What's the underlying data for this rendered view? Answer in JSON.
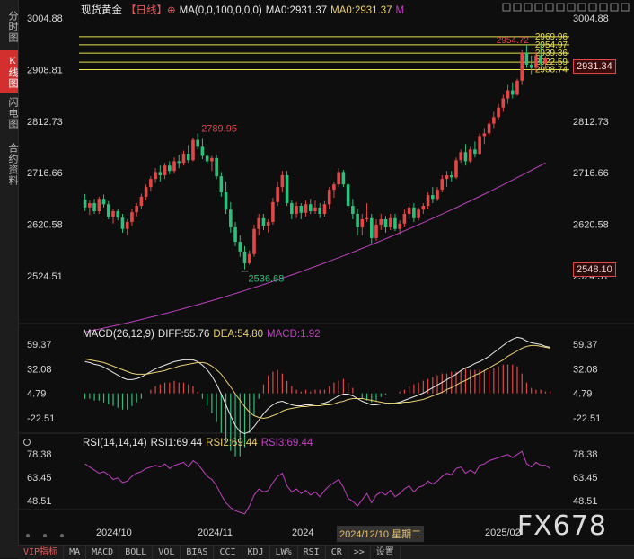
{
  "left_rail": {
    "tabs": [
      {
        "label": "分时图",
        "active": false
      },
      {
        "label": "K线图",
        "active": true
      },
      {
        "label": "闪电图",
        "active": false
      },
      {
        "label": "合约资料",
        "active": false
      }
    ]
  },
  "header": {
    "instrument": "现货黄金",
    "period": "【日线】",
    "plus_icon": "⊕",
    "ma_label": "MA(0,0,100,0,0,0)",
    "ma0_a": "MA0:2931.37",
    "ma0_b": "MA0:2931.37",
    "ma_tail": "M"
  },
  "toolbar_icons": [
    "checkbox-icon",
    "checkbox-icon",
    "checkbox-icon",
    "checkbox-icon",
    "checkbox-icon",
    "checkbox-icon",
    "checkbox-icon",
    "checkbox-icon",
    "checkbox-icon",
    "checkbox-icon",
    "checkbox-icon",
    "checkbox-icon"
  ],
  "macd_header": {
    "title": "MACD(26,12,9)",
    "diff": "DIFF:55.76",
    "dea": "DEA:54.80",
    "macd": "MACD:1.92"
  },
  "rsi_header": {
    "title": "RSI(14,14,14)",
    "rsi1": "RSI1:69.44",
    "rsi2": "RSI2:69.44",
    "rsi3": "RSI3:69.44"
  },
  "current_price_label": "2931.34",
  "low_price_label": "2548.10",
  "date_flag": "2024/12/10 星期二",
  "watermark": "FX678",
  "bottom_toolbar": [
    "VIP指标",
    "MA",
    "MACD",
    "BOLL",
    "VOL",
    "BIAS",
    "CCI",
    "KDJ",
    "LW%",
    "RSI",
    "CR",
    ">>",
    "设置"
  ],
  "colors": {
    "up": "#e04848",
    "down": "#2fbf7a",
    "ma": "#c040c0",
    "hline": "#e8e050",
    "diff": "#e8e8e8",
    "dea": "#e8d070",
    "rsi": "#c040c0",
    "axis": "#d8d8d8"
  },
  "chart_data": {
    "type": "candlestick",
    "price_axis": {
      "ticks": [
        3004.88,
        2908.81,
        2812.73,
        2716.66,
        2620.58,
        2524.51
      ],
      "ylim": [
        2500,
        3010
      ]
    },
    "x_tick_labels": [
      "2024/10",
      "2024/11",
      "2024",
      "1",
      "2025/02"
    ],
    "annotations": {
      "high": {
        "label": "2789.95",
        "value": 2789.95
      },
      "low": {
        "label": "2536.68",
        "value": 2536.68
      },
      "recent_high": {
        "label": "2954.72",
        "value": 2954.72
      }
    },
    "horizontal_levels": [
      {
        "label": "2969.96",
        "value": 2969.96
      },
      {
        "label": "2954.97",
        "value": 2954.97
      },
      {
        "label": "2939.36",
        "value": 2939.36
      },
      {
        "label": "2922.59",
        "value": 2922.59
      },
      {
        "label": "2908.74",
        "value": 2908.74
      }
    ],
    "candles": [
      [
        2667,
        2677,
        2645,
        2652
      ],
      [
        2652,
        2665,
        2638,
        2660
      ],
      [
        2660,
        2668,
        2640,
        2645
      ],
      [
        2645,
        2672,
        2640,
        2668
      ],
      [
        2668,
        2676,
        2652,
        2658
      ],
      [
        2658,
        2664,
        2630,
        2635
      ],
      [
        2635,
        2650,
        2622,
        2645
      ],
      [
        2645,
        2650,
        2628,
        2633
      ],
      [
        2633,
        2640,
        2605,
        2612
      ],
      [
        2612,
        2630,
        2600,
        2625
      ],
      [
        2625,
        2650,
        2618,
        2643
      ],
      [
        2643,
        2660,
        2635,
        2655
      ],
      [
        2655,
        2678,
        2650,
        2672
      ],
      [
        2672,
        2695,
        2665,
        2690
      ],
      [
        2690,
        2710,
        2682,
        2705
      ],
      [
        2705,
        2725,
        2698,
        2718
      ],
      [
        2718,
        2730,
        2700,
        2712
      ],
      [
        2712,
        2735,
        2705,
        2730
      ],
      [
        2730,
        2738,
        2714,
        2720
      ],
      [
        2720,
        2745,
        2715,
        2738
      ],
      [
        2738,
        2750,
        2725,
        2735
      ],
      [
        2735,
        2758,
        2730,
        2752
      ],
      [
        2752,
        2768,
        2735,
        2740
      ],
      [
        2740,
        2782,
        2738,
        2778
      ],
      [
        2778,
        2790,
        2760,
        2765
      ],
      [
        2765,
        2780,
        2742,
        2748
      ],
      [
        2748,
        2752,
        2732,
        2738
      ],
      [
        2738,
        2748,
        2720,
        2744
      ],
      [
        2744,
        2750,
        2705,
        2710
      ],
      [
        2710,
        2718,
        2672,
        2680
      ],
      [
        2680,
        2700,
        2640,
        2648
      ],
      [
        2648,
        2662,
        2605,
        2615
      ],
      [
        2615,
        2625,
        2580,
        2588
      ],
      [
        2588,
        2600,
        2560,
        2570
      ],
      [
        2570,
        2580,
        2537,
        2548
      ],
      [
        2548,
        2572,
        2545,
        2565
      ],
      [
        2565,
        2620,
        2560,
        2612
      ],
      [
        2612,
        2640,
        2600,
        2632
      ],
      [
        2632,
        2640,
        2610,
        2618
      ],
      [
        2618,
        2630,
        2605,
        2625
      ],
      [
        2625,
        2670,
        2620,
        2662
      ],
      [
        2662,
        2700,
        2655,
        2690
      ],
      [
        2690,
        2720,
        2680,
        2712
      ],
      [
        2712,
        2720,
        2655,
        2660
      ],
      [
        2660,
        2665,
        2630,
        2640
      ],
      [
        2640,
        2662,
        2632,
        2655
      ],
      [
        2655,
        2660,
        2630,
        2642
      ],
      [
        2642,
        2665,
        2635,
        2658
      ],
      [
        2658,
        2668,
        2640,
        2645
      ],
      [
        2645,
        2665,
        2640,
        2652
      ],
      [
        2652,
        2660,
        2632,
        2640
      ],
      [
        2640,
        2664,
        2635,
        2658
      ],
      [
        2658,
        2690,
        2650,
        2685
      ],
      [
        2685,
        2700,
        2670,
        2695
      ],
      [
        2695,
        2725,
        2690,
        2718
      ],
      [
        2718,
        2722,
        2690,
        2695
      ],
      [
        2695,
        2700,
        2650,
        2655
      ],
      [
        2655,
        2668,
        2630,
        2640
      ],
      [
        2640,
        2650,
        2600,
        2615
      ],
      [
        2615,
        2640,
        2600,
        2630
      ],
      [
        2630,
        2660,
        2625,
        2632
      ],
      [
        2632,
        2640,
        2585,
        2595
      ],
      [
        2595,
        2630,
        2590,
        2620
      ],
      [
        2620,
        2640,
        2610,
        2630
      ],
      [
        2630,
        2636,
        2605,
        2615
      ],
      [
        2615,
        2640,
        2610,
        2632
      ],
      [
        2632,
        2640,
        2608,
        2612
      ],
      [
        2612,
        2628,
        2602,
        2622
      ],
      [
        2622,
        2648,
        2615,
        2640
      ],
      [
        2640,
        2660,
        2630,
        2652
      ],
      [
        2652,
        2660,
        2625,
        2632
      ],
      [
        2632,
        2652,
        2628,
        2648
      ],
      [
        2648,
        2660,
        2640,
        2655
      ],
      [
        2655,
        2680,
        2650,
        2675
      ],
      [
        2675,
        2690,
        2660,
        2668
      ],
      [
        2668,
        2690,
        2664,
        2685
      ],
      [
        2685,
        2712,
        2680,
        2705
      ],
      [
        2705,
        2720,
        2690,
        2712
      ],
      [
        2712,
        2720,
        2700,
        2708
      ],
      [
        2708,
        2745,
        2705,
        2740
      ],
      [
        2740,
        2760,
        2735,
        2755
      ],
      [
        2755,
        2770,
        2730,
        2738
      ],
      [
        2738,
        2765,
        2735,
        2760
      ],
      [
        2760,
        2775,
        2745,
        2752
      ],
      [
        2752,
        2790,
        2750,
        2785
      ],
      [
        2785,
        2800,
        2770,
        2790
      ],
      [
        2790,
        2815,
        2785,
        2808
      ],
      [
        2808,
        2830,
        2800,
        2820
      ],
      [
        2820,
        2845,
        2815,
        2838
      ],
      [
        2838,
        2862,
        2830,
        2855
      ],
      [
        2855,
        2880,
        2845,
        2870
      ],
      [
        2870,
        2885,
        2855,
        2862
      ],
      [
        2862,
        2892,
        2860,
        2888
      ],
      [
        2888,
        2945,
        2880,
        2940
      ],
      [
        2940,
        2955,
        2912,
        2918
      ],
      [
        2918,
        2935,
        2900,
        2912
      ],
      [
        2912,
        2942,
        2905,
        2935
      ],
      [
        2935,
        2958,
        2915,
        2920
      ],
      [
        2920,
        2934,
        2908,
        2931
      ]
    ],
    "ma_line": {
      "name": "MA100",
      "start": 2420,
      "end": 2735
    },
    "macd": {
      "yticks": [
        59.37,
        32.08,
        4.79,
        -22.51
      ],
      "ylim": [
        -45,
        72
      ],
      "diff": [
        40,
        39,
        37,
        36,
        34,
        31,
        28,
        25,
        22,
        20,
        20,
        21,
        23,
        26,
        29,
        32,
        34,
        36,
        38,
        40,
        41,
        42,
        42,
        42,
        40,
        36,
        31,
        24,
        15,
        4,
        -8,
        -20,
        -31,
        -38,
        -40,
        -38,
        -32,
        -25,
        -18,
        -12,
        -8,
        -5,
        -4,
        -6,
        -8,
        -9,
        -9,
        -8,
        -8,
        -7,
        -7,
        -6,
        -4,
        -1,
        2,
        4,
        4,
        2,
        -1,
        -4,
        -6,
        -8,
        -8,
        -7,
        -7,
        -6,
        -6,
        -5,
        -3,
        -1,
        1,
        3,
        5,
        8,
        11,
        14,
        17,
        20,
        23,
        26,
        30,
        33,
        35,
        38,
        40,
        43,
        46,
        50,
        54,
        58,
        62,
        65,
        67,
        66,
        63,
        61,
        60,
        59,
        57,
        56
      ],
      "dea": [
        43,
        42,
        41,
        40,
        39,
        37,
        35,
        33,
        31,
        29,
        27,
        26,
        26,
        26,
        27,
        28,
        29,
        30,
        32,
        33,
        35,
        36,
        37,
        38,
        39,
        39,
        38,
        35,
        31,
        26,
        19,
        12,
        4,
        -3,
        -10,
        -16,
        -20,
        -22,
        -23,
        -22,
        -20,
        -18,
        -15,
        -13,
        -12,
        -11,
        -10,
        -10,
        -9,
        -9,
        -9,
        -8,
        -8,
        -7,
        -5,
        -4,
        -2,
        -1,
        -1,
        -1,
        -2,
        -3,
        -4,
        -5,
        -6,
        -6,
        -6,
        -6,
        -5,
        -5,
        -4,
        -3,
        -2,
        0,
        2,
        4,
        6,
        9,
        11,
        14,
        17,
        19,
        22,
        25,
        27,
        30,
        33,
        36,
        39,
        42,
        46,
        49,
        52,
        55,
        57,
        58,
        58,
        57,
        56,
        55
      ]
    },
    "rsi": {
      "yticks": [
        78.38,
        63.45,
        48.51
      ],
      "ylim": [
        36,
        82
      ],
      "values": [
        72,
        70,
        68,
        66,
        67,
        65,
        62,
        63,
        60,
        61,
        64,
        66,
        67,
        69,
        70,
        71,
        70,
        72,
        69,
        71,
        72,
        73,
        70,
        74,
        72,
        68,
        64,
        62,
        58,
        52,
        47,
        44,
        42,
        41,
        40,
        45,
        52,
        56,
        54,
        55,
        60,
        64,
        66,
        58,
        54,
        56,
        53,
        55,
        52,
        54,
        51,
        55,
        58,
        60,
        62,
        57,
        50,
        48,
        45,
        49,
        53,
        47,
        52,
        54,
        52,
        55,
        51,
        53,
        56,
        58,
        54,
        57,
        58,
        61,
        59,
        61,
        64,
        66,
        65,
        69,
        70,
        66,
        68,
        66,
        71,
        72,
        74,
        75,
        76,
        77,
        78,
        76,
        78,
        80,
        72,
        70,
        73,
        71,
        71,
        69
      ]
    }
  }
}
